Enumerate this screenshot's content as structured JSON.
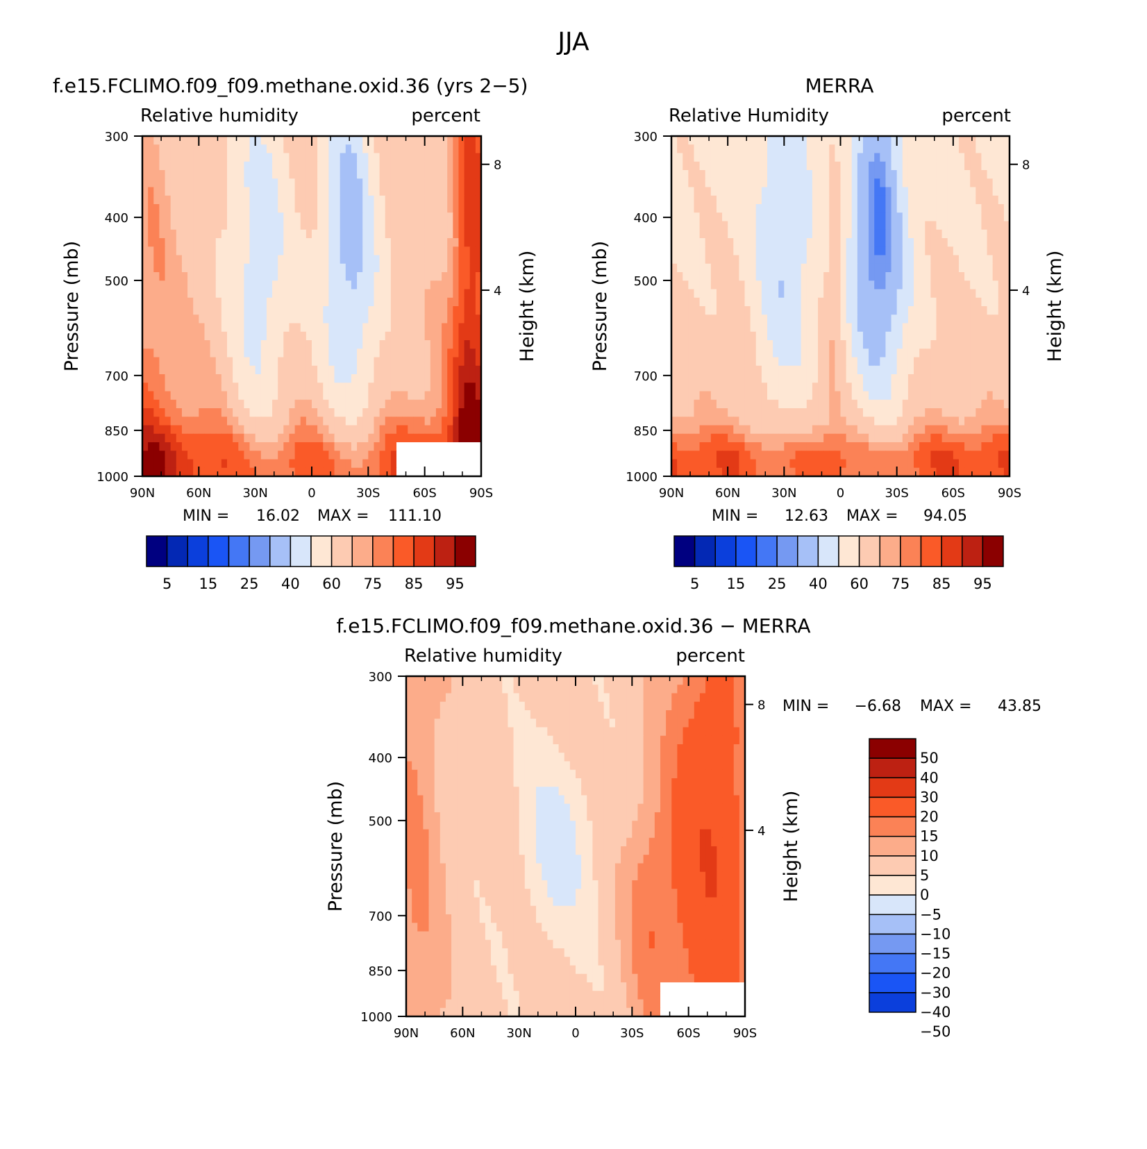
{
  "figure_title": "JJA",
  "colors": {
    "abs_palette": [
      "#000080",
      "#0328b4",
      "#0b3fdc",
      "#1a55f5",
      "#4477f5",
      "#7599f2",
      "#a6c0f7",
      "#d8e6fa",
      "#fee7d4",
      "#fdcbb2",
      "#fcac8a",
      "#fb8256",
      "#fa5a28",
      "#e33a16",
      "#bd2112",
      "#8b0000"
    ],
    "diff_palette": [
      "#000080",
      "#0328b4",
      "#0b3fdc",
      "#1a55f5",
      "#4477f5",
      "#7599f2",
      "#a6c0f7",
      "#d8e6fa",
      "#fee7d4",
      "#fdcbb2",
      "#fcac8a",
      "#fb8256",
      "#fa5a28",
      "#e33a16",
      "#bd2112",
      "#8b0000"
    ]
  },
  "chart_data": [
    {
      "type": "heatmap",
      "title": "f.e15.FCLIMO.f09_f09.methane.oxid.36 (yrs 2−5)",
      "field_label": "Relative humidity",
      "units_label": "percent",
      "ylabel": "Pressure (mb)",
      "ylabel_right": "Height (km)",
      "x_ticks": [
        "90N",
        "60N",
        "30N",
        "0",
        "30S",
        "60S",
        "90S"
      ],
      "y_ticks": [
        "300",
        "400",
        "500",
        "700",
        "850",
        "1000"
      ],
      "height_ticks": [
        "8",
        "4"
      ],
      "min_label": "MIN =",
      "min_value": "16.02",
      "max_label": "MAX =",
      "max_value": "111.10",
      "levels": [
        "5",
        "15",
        "25",
        "40",
        "60",
        "75",
        "85",
        "95"
      ],
      "colorbar": "horizontal",
      "field_hint": "model"
    },
    {
      "type": "heatmap",
      "title": "MERRA",
      "field_label": "Relative Humidity",
      "units_label": "percent",
      "ylabel": "Pressure (mb)",
      "ylabel_right": "Height (km)",
      "x_ticks": [
        "90N",
        "60N",
        "30N",
        "0",
        "30S",
        "60S",
        "90S"
      ],
      "y_ticks": [
        "300",
        "400",
        "500",
        "700",
        "850",
        "1000"
      ],
      "height_ticks": [
        "8",
        "4"
      ],
      "min_label": "MIN =",
      "min_value": "12.63",
      "max_label": "MAX =",
      "max_value": "94.05",
      "levels": [
        "5",
        "15",
        "25",
        "40",
        "60",
        "75",
        "85",
        "95"
      ],
      "colorbar": "horizontal",
      "field_hint": "obs"
    },
    {
      "type": "heatmap",
      "title": "f.e15.FCLIMO.f09_f09.methane.oxid.36 − MERRA",
      "field_label": "Relative humidity",
      "units_label": "percent",
      "ylabel": "Pressure (mb)",
      "ylabel_right": "Height (km)",
      "x_ticks": [
        "90N",
        "60N",
        "30N",
        "0",
        "30S",
        "60S",
        "90S"
      ],
      "y_ticks": [
        "300",
        "400",
        "500",
        "700",
        "850",
        "1000"
      ],
      "height_ticks": [
        "8",
        "4"
      ],
      "min_label": "MIN =",
      "min_value": "−6.68",
      "max_label": "MAX =",
      "max_value": "43.85",
      "levels": [
        "50",
        "40",
        "30",
        "20",
        "15",
        "10",
        "5",
        "0",
        "−5",
        "−10",
        "−15",
        "−20",
        "−30",
        "−40",
        "−50"
      ],
      "colorbar": "vertical",
      "field_hint": "diff"
    }
  ]
}
